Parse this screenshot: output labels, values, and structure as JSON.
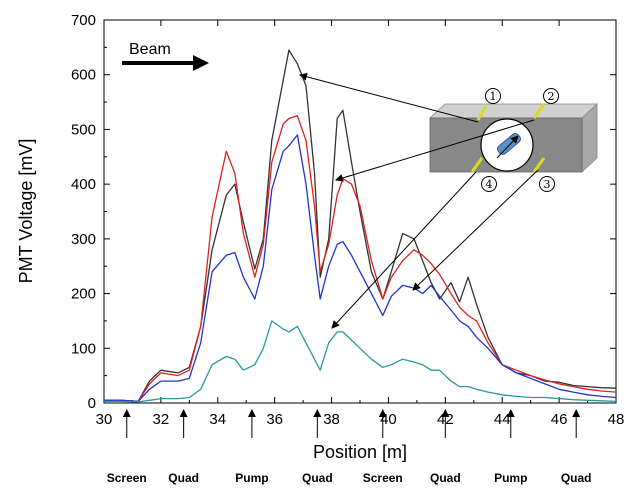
{
  "chart_data": {
    "type": "line",
    "xlabel": "Position [m]",
    "ylabel": "PMT Voltage [mV]",
    "xlim": [
      30,
      48
    ],
    "ylim": [
      0,
      700
    ],
    "x_ticks": [
      "30",
      "32",
      "34",
      "36",
      "38",
      "40",
      "42",
      "44",
      "46",
      "48"
    ],
    "y_ticks": [
      "0",
      "100",
      "200",
      "300",
      "400",
      "500",
      "600",
      "700"
    ],
    "annotation_beam": "Beam",
    "series": [
      {
        "color": "#333333",
        "x": [
          30,
          30.6,
          31.2,
          31.6,
          32,
          32.6,
          33,
          33.4,
          33.8,
          34.3,
          34.6,
          34.9,
          35.3,
          35.6,
          35.9,
          36.3,
          36.5,
          36.8,
          37.1,
          37.4,
          37.6,
          37.9,
          38.2,
          38.4,
          38.7,
          39,
          39.4,
          39.8,
          40.1,
          40.5,
          40.9,
          41.2,
          41.5,
          41.8,
          42.2,
          42.5,
          42.8,
          43.1,
          43.5,
          44,
          44.5,
          45,
          45.5,
          46,
          46.5,
          47,
          47.5,
          48
        ],
        "y": [
          5,
          5,
          3,
          40,
          60,
          55,
          65,
          140,
          280,
          380,
          400,
          330,
          245,
          300,
          480,
          590,
          645,
          620,
          580,
          420,
          230,
          300,
          520,
          535,
          440,
          350,
          240,
          190,
          240,
          310,
          300,
          260,
          220,
          190,
          220,
          185,
          230,
          180,
          120,
          70,
          55,
          50,
          40,
          38,
          32,
          30,
          28,
          27
        ]
      },
      {
        "color": "#dd2222",
        "x": [
          30,
          30.6,
          31.2,
          31.6,
          32,
          32.6,
          33,
          33.4,
          33.8,
          34.3,
          34.6,
          34.9,
          35.3,
          35.6,
          35.9,
          36.3,
          36.5,
          36.8,
          37.1,
          37.4,
          37.6,
          37.9,
          38.2,
          38.4,
          38.7,
          39,
          39.4,
          39.8,
          40.1,
          40.5,
          40.9,
          41.2,
          41.5,
          41.8,
          42.2,
          42.5,
          42.8,
          43.1,
          43.5,
          44,
          44.5,
          45,
          45.5,
          46,
          46.5,
          47,
          47.5,
          48
        ],
        "y": [
          5,
          5,
          3,
          35,
          55,
          50,
          60,
          140,
          340,
          460,
          420,
          310,
          230,
          290,
          440,
          510,
          520,
          525,
          480,
          360,
          240,
          290,
          380,
          410,
          400,
          360,
          260,
          190,
          230,
          260,
          280,
          270,
          255,
          235,
          200,
          175,
          160,
          150,
          110,
          70,
          60,
          50,
          42,
          35,
          30,
          25,
          22,
          20
        ]
      },
      {
        "color": "#2233cc",
        "x": [
          30,
          30.6,
          31.2,
          31.6,
          32,
          32.6,
          33,
          33.4,
          33.8,
          34.3,
          34.6,
          34.9,
          35.3,
          35.6,
          35.9,
          36.3,
          36.5,
          36.8,
          37.1,
          37.4,
          37.6,
          37.9,
          38.2,
          38.4,
          38.7,
          39,
          39.4,
          39.8,
          40.1,
          40.5,
          40.9,
          41.2,
          41.5,
          41.8,
          42.2,
          42.5,
          42.8,
          43.1,
          43.5,
          44,
          44.5,
          45,
          45.5,
          46,
          46.5,
          47,
          47.5,
          48
        ],
        "y": [
          5,
          5,
          3,
          25,
          40,
          40,
          45,
          110,
          240,
          270,
          275,
          230,
          190,
          250,
          390,
          460,
          470,
          490,
          400,
          270,
          190,
          250,
          290,
          295,
          270,
          240,
          200,
          160,
          195,
          215,
          210,
          200,
          215,
          195,
          170,
          150,
          140,
          120,
          100,
          70,
          55,
          45,
          35,
          25,
          20,
          15,
          12,
          10
        ]
      },
      {
        "color": "#2a9a96",
        "x": [
          30,
          30.6,
          31.2,
          31.6,
          32,
          32.6,
          33,
          33.4,
          33.8,
          34.3,
          34.6,
          34.9,
          35.3,
          35.6,
          35.9,
          36.3,
          36.5,
          36.8,
          37.1,
          37.4,
          37.6,
          37.9,
          38.2,
          38.4,
          38.7,
          39,
          39.4,
          39.8,
          40.1,
          40.5,
          40.9,
          41.2,
          41.5,
          41.8,
          42.2,
          42.5,
          42.8,
          43.1,
          43.5,
          44,
          44.5,
          45,
          45.5,
          46,
          46.5,
          47,
          47.5,
          48
        ],
        "y": [
          3,
          3,
          2,
          5,
          8,
          8,
          10,
          25,
          70,
          85,
          80,
          60,
          70,
          100,
          150,
          135,
          130,
          140,
          110,
          80,
          60,
          110,
          130,
          130,
          115,
          100,
          80,
          65,
          70,
          80,
          75,
          70,
          60,
          60,
          40,
          30,
          30,
          25,
          20,
          15,
          12,
          10,
          10,
          8,
          6,
          5,
          4,
          3
        ]
      }
    ],
    "components": [
      {
        "label": "Screen",
        "x": 30.8
      },
      {
        "label": "Quad",
        "x": 32.8
      },
      {
        "label": "Pump",
        "x": 35.2
      },
      {
        "label": "Quad",
        "x": 37.5
      },
      {
        "label": "Screen",
        "x": 39.8
      },
      {
        "label": "Quad",
        "x": 42.0
      },
      {
        "label": "Pump",
        "x": 44.3
      },
      {
        "label": "Quad",
        "x": 46.6
      }
    ],
    "detectors": [
      "1",
      "2",
      "3",
      "4"
    ]
  }
}
